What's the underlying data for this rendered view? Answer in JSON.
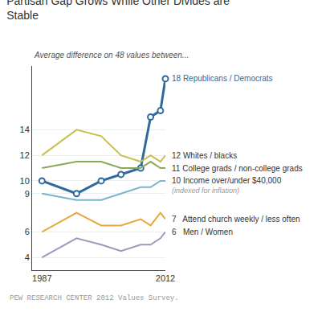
{
  "chart_data": {
    "type": "line",
    "title": "Partisan Gap Grows While Other Divides are\nStable",
    "subtitle": "Average difference on 48 values between...",
    "footer": "PEW RESEARCH CENTER 2012 Values Survey.",
    "x": [
      1987,
      1994,
      1999,
      2003,
      2007,
      2009,
      2011,
      2012
    ],
    "series": [
      {
        "name": "18 Republicans / Democrats",
        "color": "#2e6a9e",
        "marker": "circle",
        "values": [
          10.0,
          9.0,
          10.0,
          10.5,
          11.0,
          15.0,
          15.5,
          18.0
        ]
      },
      {
        "name": "12 Whites / blacks",
        "color": "#c8c050",
        "values": [
          12.0,
          14.0,
          13.5,
          12.0,
          11.5,
          12.0,
          11.5,
          12.0
        ]
      },
      {
        "name": "11 College grads / non-college grads",
        "color": "#8aaa5a",
        "values": [
          11.0,
          11.5,
          11.5,
          11.0,
          11.0,
          11.5,
          11.0,
          11.0
        ]
      },
      {
        "name": "10 Income over/under $40,000",
        "color": "#7ab4cc",
        "values": [
          9.0,
          8.5,
          8.5,
          9.0,
          9.5,
          9.5,
          10.0,
          10.0
        ]
      },
      {
        "name": "7   Attend church weekly / less often",
        "color": "#e8a83a",
        "values": [
          6.0,
          7.5,
          6.5,
          6.5,
          7.0,
          6.5,
          7.5,
          7.0
        ]
      },
      {
        "name": "6   Men / Women",
        "color": "#a098c0",
        "values": [
          4.0,
          5.5,
          5.0,
          4.5,
          5.0,
          5.0,
          5.5,
          6.0
        ]
      }
    ],
    "annotations": [
      {
        "text": "(indexed for inflation)",
        "series": "10 Income over/under $40,000"
      }
    ],
    "xlim": [
      1985,
      2012
    ],
    "xticks": [
      1987,
      2012
    ],
    "ylim": [
      3,
      19
    ],
    "yticks": [
      4,
      6,
      9,
      10,
      12,
      14
    ],
    "grid": true
  }
}
